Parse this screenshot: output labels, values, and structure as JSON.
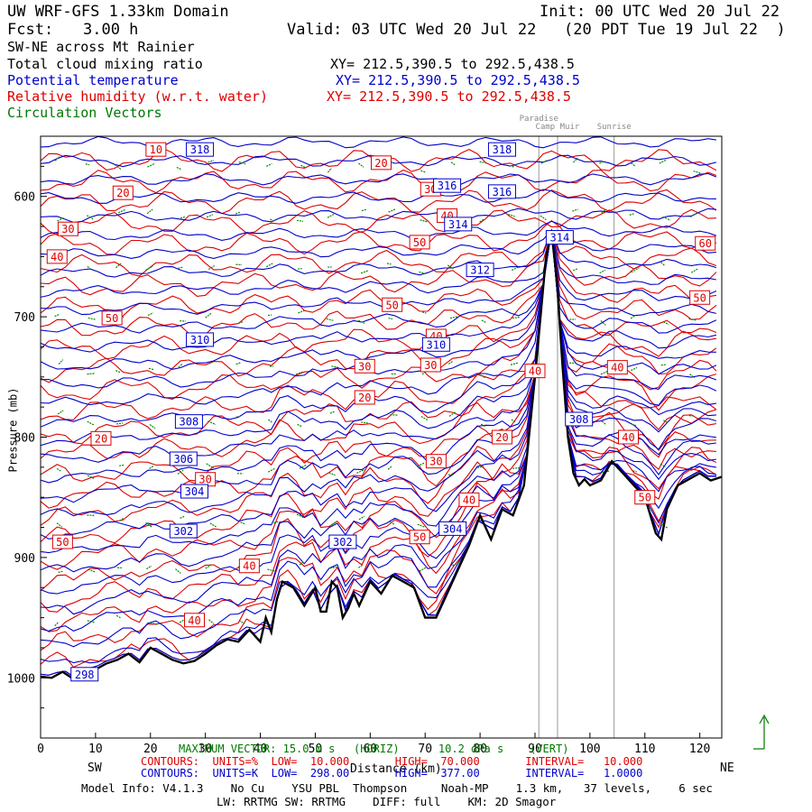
{
  "header": {
    "title": "UW WRF-GFS 1.33km Domain",
    "init": "Init: 00 UTC Wed 20 Jul 22",
    "fcst_label": "Fcst:",
    "fcst_value": "3.00 h",
    "valid": "Valid: 03 UTC Wed 20 Jul 22   (20 PDT Tue 19 Jul 22  )",
    "cross_section": "SW-NE across Mt Rainier"
  },
  "legend": {
    "cloud": {
      "label": "Total cloud mixing ratio",
      "xy": "XY= 212.5,390.5 to 292.5,438.5"
    },
    "theta": {
      "label": "Potential temperature",
      "xy": "XY= 212.5,390.5 to 292.5,438.5"
    },
    "rh": {
      "label": "Relative humidity (w.r.t. water)",
      "xy": "XY= 212.5,390.5 to 292.5,438.5"
    },
    "vectors": {
      "label": "Circulation Vectors"
    }
  },
  "colors": {
    "theta": "#0000cc",
    "rh": "#dd0000",
    "vectors": "#008800",
    "terrain": "#000000",
    "marker": "#999999"
  },
  "chart_data": {
    "type": "line",
    "xlabel": "Distance (km)",
    "ylabel": "Pressure (mb)",
    "xlim": [
      0,
      124
    ],
    "ylim": [
      1050,
      550
    ],
    "x_ticks": [
      0,
      10,
      20,
      30,
      40,
      50,
      60,
      70,
      80,
      90,
      100,
      110,
      120
    ],
    "y_ticks": [
      600,
      700,
      800,
      900,
      1000
    ],
    "y_tick_labels": [
      "600",
      "700",
      "800",
      "900",
      "1000"
    ],
    "x_ends": {
      "left": "SW",
      "right": "NE"
    },
    "markers": [
      {
        "name": "Paradise",
        "x": 90.7
      },
      {
        "name": "Camp Muir",
        "x": 94.1
      },
      {
        "name": "Sunrise",
        "x": 104.4
      }
    ],
    "terrain": {
      "x": [
        0,
        2,
        4,
        6,
        8,
        10,
        12,
        14,
        16,
        18,
        20,
        22,
        24,
        26,
        28,
        30,
        32,
        34,
        36,
        38,
        40,
        41,
        42,
        43,
        44,
        46,
        48,
        50,
        51,
        52,
        53,
        54,
        55,
        56,
        57,
        58,
        60,
        62,
        64,
        66,
        68,
        70,
        72,
        74,
        76,
        78,
        80,
        82,
        84,
        86,
        88,
        90,
        91,
        92,
        93,
        94,
        95,
        96,
        97,
        98,
        99,
        100,
        102,
        104,
        106,
        108,
        110,
        112,
        113,
        114,
        116,
        118,
        120,
        122,
        124
      ],
      "p": [
        999,
        1000,
        995,
        1001,
        995,
        993,
        988,
        985,
        980,
        987,
        975,
        980,
        985,
        988,
        986,
        980,
        973,
        968,
        970,
        960,
        970,
        950,
        962,
        935,
        920,
        925,
        940,
        925,
        945,
        945,
        920,
        925,
        950,
        942,
        930,
        940,
        920,
        930,
        915,
        920,
        925,
        950,
        950,
        930,
        910,
        890,
        865,
        885,
        860,
        865,
        840,
        750,
        700,
        650,
        630,
        670,
        740,
        800,
        830,
        840,
        835,
        840,
        836,
        820,
        830,
        840,
        850,
        880,
        885,
        860,
        840,
        835,
        830,
        836,
        833
      ]
    },
    "theta_series": {
      "name": "Potential temperature",
      "units": "K",
      "contour_labels": [
        {
          "text": "318",
          "x": 29,
          "p": 561
        },
        {
          "text": "318",
          "x": 84,
          "p": 561
        },
        {
          "text": "316",
          "x": 74,
          "p": 591
        },
        {
          "text": "316",
          "x": 84,
          "p": 596
        },
        {
          "text": "314",
          "x": 76,
          "p": 623
        },
        {
          "text": "314",
          "x": 94.5,
          "p": 634
        },
        {
          "text": "312",
          "x": 80,
          "p": 661
        },
        {
          "text": "310",
          "x": 29,
          "p": 719
        },
        {
          "text": "310",
          "x": 72,
          "p": 723
        },
        {
          "text": "308",
          "x": 27,
          "p": 787
        },
        {
          "text": "308",
          "x": 98,
          "p": 785
        },
        {
          "text": "306",
          "x": 26,
          "p": 818
        },
        {
          "text": "304",
          "x": 28,
          "p": 845
        },
        {
          "text": "302",
          "x": 26,
          "p": 878
        },
        {
          "text": "302",
          "x": 55,
          "p": 887
        },
        {
          "text": "304",
          "x": 75,
          "p": 876
        },
        {
          "text": "298",
          "x": 8,
          "p": 997
        }
      ]
    },
    "rh_series": {
      "name": "Relative humidity (w.r.t. water)",
      "units": "%",
      "contour_labels": [
        {
          "text": "10",
          "x": 21,
          "p": 561
        },
        {
          "text": "20",
          "x": 15,
          "p": 597
        },
        {
          "text": "20",
          "x": 62,
          "p": 572
        },
        {
          "text": "30",
          "x": 71,
          "p": 594
        },
        {
          "text": "40",
          "x": 74,
          "p": 616
        },
        {
          "text": "30",
          "x": 5,
          "p": 627
        },
        {
          "text": "50",
          "x": 69,
          "p": 638
        },
        {
          "text": "40",
          "x": 3,
          "p": 650
        },
        {
          "text": "60",
          "x": 121,
          "p": 639
        },
        {
          "text": "50",
          "x": 120,
          "p": 684
        },
        {
          "text": "50",
          "x": 64,
          "p": 690
        },
        {
          "text": "50",
          "x": 13,
          "p": 701
        },
        {
          "text": "40",
          "x": 72,
          "p": 716
        },
        {
          "text": "30",
          "x": 59,
          "p": 741
        },
        {
          "text": "30",
          "x": 71,
          "p": 740
        },
        {
          "text": "40",
          "x": 90,
          "p": 745
        },
        {
          "text": "40",
          "x": 105,
          "p": 742
        },
        {
          "text": "20",
          "x": 59,
          "p": 767
        },
        {
          "text": "20",
          "x": 11,
          "p": 801
        },
        {
          "text": "20",
          "x": 84,
          "p": 800
        },
        {
          "text": "40",
          "x": 107,
          "p": 800
        },
        {
          "text": "30",
          "x": 72,
          "p": 820
        },
        {
          "text": "30",
          "x": 30,
          "p": 835
        },
        {
          "text": "40",
          "x": 78,
          "p": 852
        },
        {
          "text": "50",
          "x": 110,
          "p": 850
        },
        {
          "text": "50",
          "x": 4,
          "p": 887
        },
        {
          "text": "50",
          "x": 69,
          "p": 883
        },
        {
          "text": "40",
          "x": 38,
          "p": 907
        },
        {
          "text": "40",
          "x": 28,
          "p": 952
        }
      ]
    },
    "vectors_series": {
      "name": "Circulation Vectors"
    }
  },
  "footer": {
    "max_vector": "MAXIMUM VECTOR: 15.0 m s",
    "max_vector_units": "(HORIZ)      10.2 dPa s    (VERT)",
    "rh_contours": "CONTOURS:  UNITS=%  LOW=  10.000       HIGH=  70.000       INTERVAL=   10.000",
    "theta_contours": "CONTOURS:  UNITS=K  LOW=  298.00       HIGH=  377.00       INTERVAL=   1.0000",
    "model_info": "Model Info: V4.1.3    No Cu    YSU PBL  Thompson     Noah-MP    1.3 km,   37 levels,    6 sec",
    "physics": "LW: RRTMG SW: RRTMG    DIFF: full    KM: 2D Smagor"
  }
}
